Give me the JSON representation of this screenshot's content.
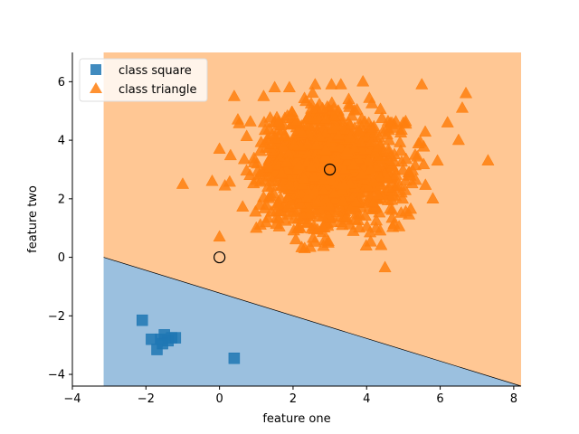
{
  "chart_data": {
    "type": "scatter",
    "title": "",
    "xlabel": "feature one",
    "ylabel": "feature two",
    "xlim": [
      -4,
      8.2
    ],
    "ylim": [
      -4.4,
      7
    ],
    "xticks": [
      -4,
      -2,
      0,
      2,
      4,
      6,
      8
    ],
    "yticks": [
      -4,
      -2,
      0,
      2,
      4,
      6
    ],
    "xtick_labels": [
      "−4",
      "−2",
      "0",
      "2",
      "4",
      "6",
      "8"
    ],
    "ytick_labels": [
      "−4",
      "−2",
      "0",
      "2",
      "4",
      "6"
    ],
    "decision_region": {
      "x_range": [
        -3.15,
        8.2
      ],
      "y_range": [
        -4.4,
        7
      ],
      "boundary": [
        [
          -3.15,
          0.0
        ],
        [
          8.2,
          -4.4
        ]
      ],
      "upper_color": "#ffc794",
      "lower_color": "#9bc0df"
    },
    "legend": {
      "position": "top-left",
      "entries": [
        {
          "label": "class square",
          "marker": "square",
          "color": "#1f77b4"
        },
        {
          "label": "class triangle",
          "marker": "triangle",
          "color": "#ff7f0e"
        }
      ]
    },
    "series": [
      {
        "name": "class square",
        "marker": "square",
        "color": "#1f77b4",
        "points": [
          [
            -2.1,
            -2.15
          ],
          [
            -1.85,
            -2.8
          ],
          [
            -1.7,
            -3.15
          ],
          [
            -1.6,
            -2.8
          ],
          [
            -1.5,
            -2.65
          ],
          [
            -1.4,
            -2.85
          ],
          [
            -1.3,
            -2.75
          ],
          [
            -1.55,
            -2.95
          ],
          [
            -1.2,
            -2.75
          ],
          [
            0.4,
            -3.45
          ]
        ]
      },
      {
        "name": "class triangle",
        "marker": "triangle",
        "color": "#ff7f0e",
        "cluster": {
          "center": [
            3.0,
            3.0
          ],
          "std": [
            0.95,
            0.95
          ],
          "count": 1500,
          "seed": 7
        },
        "points": [
          [
            -1.0,
            2.5
          ],
          [
            -0.2,
            2.6
          ],
          [
            0.0,
            3.7
          ],
          [
            0.0,
            0.7
          ],
          [
            0.4,
            5.5
          ],
          [
            1.2,
            5.5
          ],
          [
            1.5,
            5.8
          ],
          [
            1.9,
            5.8
          ],
          [
            2.6,
            5.9
          ],
          [
            3.3,
            5.9
          ],
          [
            3.9,
            6.0
          ],
          [
            5.5,
            5.9
          ],
          [
            6.7,
            5.6
          ],
          [
            6.6,
            5.1
          ],
          [
            7.3,
            3.3
          ],
          [
            6.2,
            4.6
          ],
          [
            4.5,
            -0.35
          ],
          [
            6.5,
            4.0
          ],
          [
            0.5,
            4.7
          ],
          [
            1.0,
            1.0
          ],
          [
            5.8,
            2.0
          ]
        ]
      }
    ],
    "highlight_points": [
      [
        0.0,
        0.0
      ],
      [
        3.0,
        3.0
      ]
    ]
  }
}
